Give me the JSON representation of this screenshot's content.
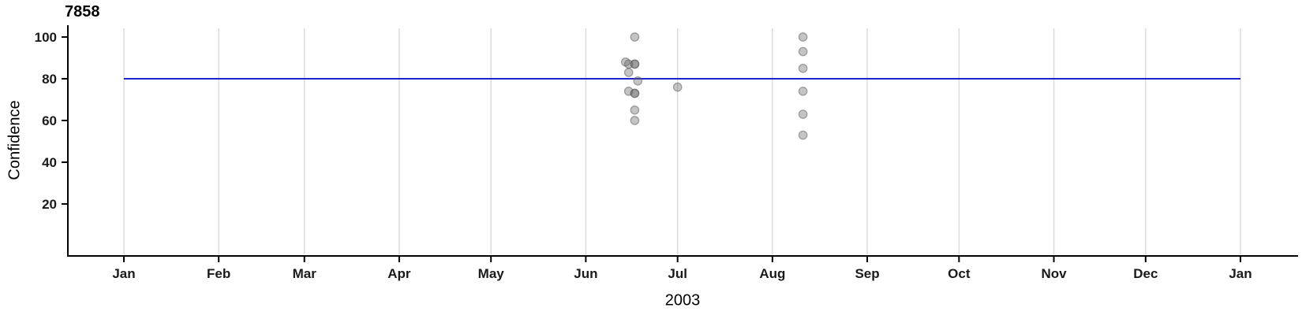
{
  "chart_data": {
    "type": "scatter",
    "title": "7858",
    "xlabel": "2003",
    "ylabel": "Confidence",
    "x_range": [
      "2003-01-01",
      "2004-01-01"
    ],
    "ylim": [
      0,
      100
    ],
    "y_ticks": [
      20,
      40,
      60,
      80,
      100
    ],
    "x_tick_labels": [
      "Jan",
      "Feb",
      "Mar",
      "Apr",
      "May",
      "Jun",
      "Jul",
      "Aug",
      "Sep",
      "Oct",
      "Nov",
      "Dec",
      "Jan"
    ],
    "grid": "vertical-month-gridlines-only",
    "legend": "none",
    "reference_line": {
      "orientation": "horizontal",
      "value": 80,
      "color": "#0000cd"
    },
    "points": [
      {
        "date": "2003-06-17",
        "value": 100
      },
      {
        "date": "2003-06-14",
        "value": 88
      },
      {
        "date": "2003-06-15",
        "value": 87
      },
      {
        "date": "2003-06-17",
        "value": 87
      },
      {
        "date": "2003-06-17",
        "value": 87
      },
      {
        "date": "2003-06-15",
        "value": 83
      },
      {
        "date": "2003-06-18",
        "value": 79
      },
      {
        "date": "2003-06-15",
        "value": 74
      },
      {
        "date": "2003-06-17",
        "value": 73
      },
      {
        "date": "2003-06-17",
        "value": 73
      },
      {
        "date": "2003-06-17",
        "value": 65
      },
      {
        "date": "2003-06-17",
        "value": 60
      },
      {
        "date": "2003-07-01",
        "value": 76
      },
      {
        "date": "2003-08-11",
        "value": 100
      },
      {
        "date": "2003-08-11",
        "value": 93
      },
      {
        "date": "2003-08-11",
        "value": 85
      },
      {
        "date": "2003-08-11",
        "value": 74
      },
      {
        "date": "2003-08-11",
        "value": 63
      },
      {
        "date": "2003-08-11",
        "value": 53
      }
    ],
    "colors": {
      "axis": "#000000",
      "grid": "#d9d9d9",
      "reference_line": "#0000cd",
      "point_fill": "#646464",
      "point_stroke": "#565656",
      "tick_label": "#1a1a1a"
    },
    "point_opacity": 0.38
  }
}
